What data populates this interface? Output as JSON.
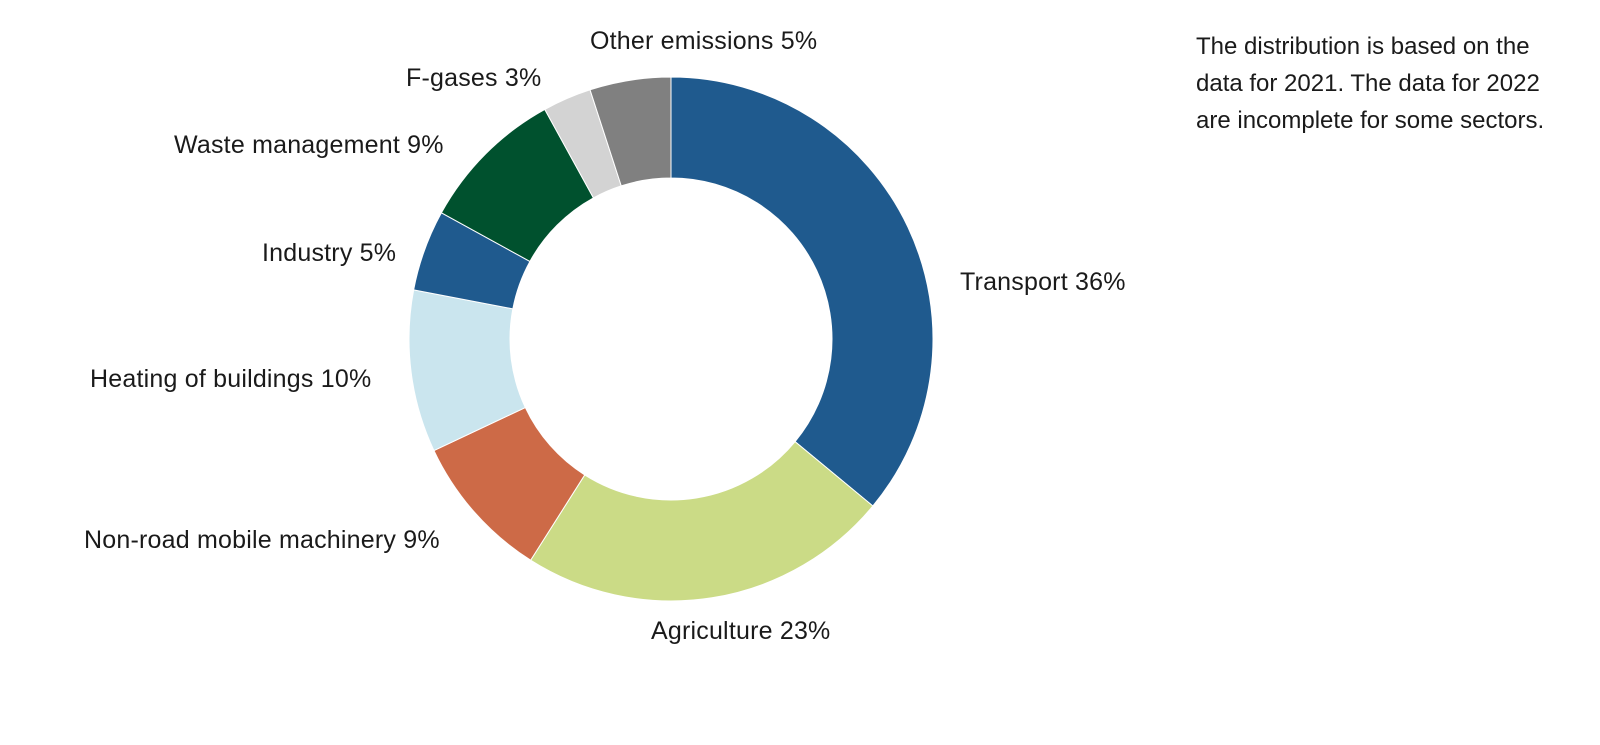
{
  "chart_data": {
    "type": "pie",
    "subtype": "donut",
    "title": "",
    "categories": [
      "Transport",
      "Agriculture",
      "Non-road mobile machinery",
      "Heating of buildings",
      "Industry",
      "Waste management",
      "F-gases",
      "Other emissions"
    ],
    "values": [
      36,
      23,
      9,
      10,
      5,
      9,
      3,
      5
    ],
    "unit": "%",
    "colors": [
      "#1f5a8e",
      "#cbdb86",
      "#cd6a47",
      "#cae5ee",
      "#1f5a8e",
      "#00512e",
      "#d3d3d3",
      "#808080"
    ],
    "start_angle": "top (12 o'clock)",
    "direction": "clockwise",
    "labels": [
      "Transport 36%",
      "Agriculture 23%",
      "Non-road mobile machinery 9%",
      "Heating of buildings 10%",
      "Industry 5%",
      "Waste management 9%",
      "F-gases 3%",
      "Other emissions 5%"
    ],
    "annotation": "The distribution is based on the data for 2021. The data for 2022 are incomplete for some sectors."
  },
  "labels": {
    "transport": "Transport 36%",
    "agriculture": "Agriculture 23%",
    "nonroad": "Non-road mobile machinery 9%",
    "heating": "Heating of buildings 10%",
    "industry": "Industry 5%",
    "waste": "Waste management 9%",
    "fgases": "F-gases 3%",
    "other": "Other emissions 5%"
  },
  "note": "The distribution is based on the data for 2021. The data for 2022 are incomplete for some sectors."
}
